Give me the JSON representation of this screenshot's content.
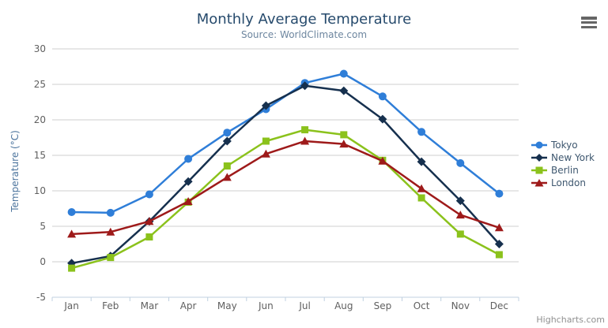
{
  "chart_data": {
    "type": "line",
    "title": "Monthly Average Temperature",
    "subtitle": "Source: WorldClimate.com",
    "xlabel": "",
    "ylabel": "Temperature (°C)",
    "ylim": [
      -5,
      30
    ],
    "ytick_interval": 5,
    "grid": "horizontal",
    "legend_position": "right",
    "categories": [
      "Jan",
      "Feb",
      "Mar",
      "Apr",
      "May",
      "Jun",
      "Jul",
      "Aug",
      "Sep",
      "Oct",
      "Nov",
      "Dec"
    ],
    "series": [
      {
        "name": "Tokyo",
        "color": "#2f7ed8",
        "marker": "circle",
        "values": [
          7.0,
          6.9,
          9.5,
          14.5,
          18.2,
          21.5,
          25.2,
          26.5,
          23.3,
          18.3,
          13.9,
          9.6
        ]
      },
      {
        "name": "New York",
        "color": "#16304e",
        "marker": "diamond",
        "values": [
          -0.2,
          0.8,
          5.7,
          11.3,
          17.0,
          22.0,
          24.8,
          24.1,
          20.1,
          14.1,
          8.6,
          2.5
        ]
      },
      {
        "name": "Berlin",
        "color": "#8bc21c",
        "marker": "square",
        "values": [
          -0.9,
          0.6,
          3.5,
          8.4,
          13.5,
          17.0,
          18.6,
          17.9,
          14.3,
          9.0,
          3.9,
          1.0
        ]
      },
      {
        "name": "London",
        "color": "#9e1a1a",
        "marker": "triangle",
        "values": [
          3.9,
          4.2,
          5.7,
          8.5,
          11.9,
          15.2,
          17.0,
          16.6,
          14.2,
          10.3,
          6.6,
          4.8
        ]
      }
    ],
    "colors": {
      "title_text": "#274b6d",
      "subtitle_text": "#6d869f",
      "axis_label_text": "#606060",
      "axis_line": "#c0d0e0",
      "gridline": "#cfcfcf",
      "legend_text": "#3e576f",
      "credits_text": "#909090"
    },
    "credits": "Highcharts.com"
  },
  "export_menu": {
    "icon": "hamburger-icon"
  }
}
